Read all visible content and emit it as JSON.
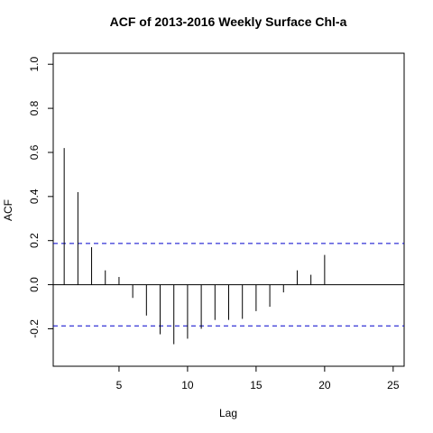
{
  "chart_data": {
    "type": "bar",
    "title": "ACF of 2013-2016 Weekly Surface Chl-a",
    "xlabel": "Lag",
    "ylabel": "ACF",
    "xlim": [
      0.2,
      25.8
    ],
    "ylim": [
      -0.37,
      1.05
    ],
    "x_ticks": [
      5,
      10,
      15,
      20,
      25
    ],
    "y_ticks": [
      -0.2,
      0.0,
      0.2,
      0.4,
      0.6,
      0.8,
      1.0
    ],
    "y_tick_labels": [
      "-0.2",
      "0.0",
      "0.2",
      "0.4",
      "0.6",
      "0.8",
      "1.0"
    ],
    "lags": [
      1,
      2,
      3,
      4,
      5,
      6,
      7,
      8,
      9,
      10,
      11,
      12,
      13,
      14,
      15,
      16,
      17,
      18,
      19,
      20
    ],
    "values": [
      0.62,
      0.42,
      0.17,
      0.065,
      0.035,
      -0.06,
      -0.14,
      -0.225,
      -0.27,
      -0.245,
      -0.2,
      -0.16,
      -0.16,
      -0.155,
      -0.12,
      -0.1,
      -0.035,
      0.065,
      0.045,
      0.135
    ],
    "zero_line": 0.0,
    "confidence_bounds": [
      0.187,
      -0.187
    ],
    "bound_color": "#0000cc",
    "grid": false,
    "legend": "none"
  }
}
